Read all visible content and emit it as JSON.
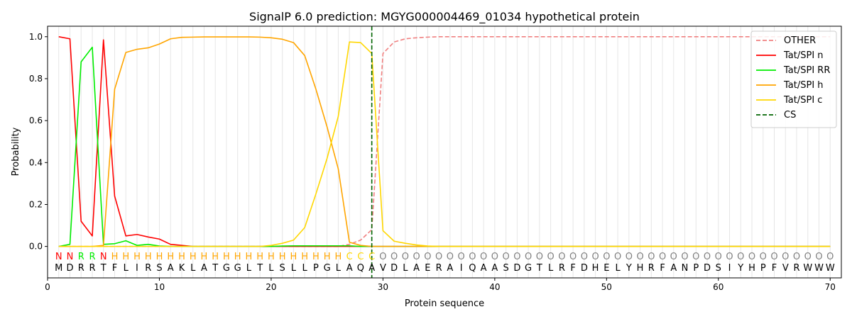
{
  "chart_data": {
    "type": "line",
    "title": "SignalP 6.0 prediction: MGYG000004469_01034 hypothetical protein",
    "xlabel": "Protein sequence",
    "ylabel": "Probability",
    "xlim": [
      0,
      71
    ],
    "ylim": [
      -0.15,
      1.05
    ],
    "xticks": [
      0,
      10,
      20,
      30,
      40,
      50,
      60,
      70
    ],
    "yticks": [
      0.0,
      0.2,
      0.4,
      0.6,
      0.8,
      1.0
    ],
    "ytick_labels": [
      "0.0",
      "0.2",
      "0.4",
      "0.6",
      "0.8",
      "1.0"
    ],
    "grid": "vertical lines at each residue",
    "legend_position": "top-right",
    "x": [
      1,
      2,
      3,
      4,
      5,
      6,
      7,
      8,
      9,
      10,
      11,
      12,
      13,
      14,
      15,
      16,
      17,
      18,
      19,
      20,
      21,
      22,
      23,
      24,
      25,
      26,
      27,
      28,
      29,
      30,
      31,
      32,
      33,
      34,
      35,
      36,
      37,
      38,
      39,
      40,
      41,
      42,
      43,
      44,
      45,
      46,
      47,
      48,
      49,
      50,
      51,
      52,
      53,
      54,
      55,
      56,
      57,
      58,
      59,
      60,
      61,
      62,
      63,
      64,
      65,
      66,
      67,
      68,
      69,
      70
    ],
    "sequence": [
      "M",
      "D",
      "R",
      "R",
      "T",
      "F",
      "L",
      "I",
      "R",
      "S",
      "A",
      "K",
      "L",
      "A",
      "T",
      "G",
      "G",
      "L",
      "T",
      "L",
      "S",
      "L",
      "L",
      "P",
      "G",
      "L",
      "A",
      "Q",
      "A",
      "V",
      "D",
      "L",
      "A",
      "E",
      "R",
      "A",
      "I",
      "Q",
      "A",
      "A",
      "S",
      "D",
      "G",
      "T",
      "L",
      "R",
      "F",
      "D",
      "H",
      "E",
      "L",
      "Y",
      "H",
      "R",
      "F",
      "A",
      "N",
      "P",
      "D",
      "S",
      "I",
      "Y",
      "H",
      "P",
      "F",
      "V",
      "R",
      "W",
      "W",
      "W"
    ],
    "region_labels": [
      "N",
      "N",
      "R",
      "R",
      "N",
      "H",
      "H",
      "H",
      "H",
      "H",
      "H",
      "H",
      "H",
      "H",
      "H",
      "H",
      "H",
      "H",
      "H",
      "H",
      "H",
      "H",
      "H",
      "H",
      "H",
      "H",
      "C",
      "C",
      "C",
      "O",
      "O",
      "O",
      "O",
      "O",
      "O",
      "O",
      "O",
      "O",
      "O",
      "O",
      "O",
      "O",
      "O",
      "O",
      "O",
      "O",
      "O",
      "O",
      "O",
      "O",
      "O",
      "O",
      "O",
      "O",
      "O",
      "O",
      "O",
      "O",
      "O",
      "O",
      "O",
      "O",
      "O",
      "O",
      "O",
      "O",
      "O",
      "O",
      "O",
      "O"
    ],
    "region_colors": {
      "N": "#ff0000",
      "R": "#00ee00",
      "H": "#ffa500",
      "C": "#ffd700",
      "O": "#808080"
    },
    "cleavage_site": 29,
    "series": [
      {
        "name": "OTHER",
        "color": "#f08080",
        "dash": "dashed",
        "values": [
          0.0,
          0.0,
          0.0,
          0.0,
          0.0,
          0.0,
          0.0,
          0.0,
          0.0,
          0.0,
          0.0,
          0.0,
          0.0,
          0.0,
          0.0,
          0.0,
          0.0,
          0.0,
          0.0,
          0.0,
          0.0,
          0.0,
          0.0,
          0.0,
          0.0,
          0.0,
          0.01,
          0.03,
          0.08,
          0.92,
          0.975,
          0.99,
          0.995,
          0.998,
          1.0,
          1.0,
          1.0,
          1.0,
          1.0,
          1.0,
          1.0,
          1.0,
          1.0,
          1.0,
          1.0,
          1.0,
          1.0,
          1.0,
          1.0,
          1.0,
          1.0,
          1.0,
          1.0,
          1.0,
          1.0,
          1.0,
          1.0,
          1.0,
          1.0,
          1.0,
          1.0,
          1.0,
          1.0,
          1.0,
          1.0,
          1.0,
          1.0,
          1.0,
          1.0,
          1.0
        ]
      },
      {
        "name": "Tat/SPI n",
        "color": "#ff0000",
        "dash": "solid",
        "values": [
          1.0,
          0.99,
          0.12,
          0.05,
          0.985,
          0.24,
          0.05,
          0.057,
          0.045,
          0.035,
          0.01,
          0.005,
          0.0,
          0.0,
          0.0,
          0.0,
          0.0,
          0.0,
          0.0,
          0.0,
          0.0,
          0.0,
          0.0,
          0.0,
          0.0,
          0.0,
          0.0,
          0.0,
          0.0,
          0.0,
          0.0,
          0.0,
          0.0,
          0.0,
          0.0,
          0.0,
          0.0,
          0.0,
          0.0,
          0.0,
          0.0,
          0.0,
          0.0,
          0.0,
          0.0,
          0.0,
          0.0,
          0.0,
          0.0,
          0.0,
          0.0,
          0.0,
          0.0,
          0.0,
          0.0,
          0.0,
          0.0,
          0.0,
          0.0,
          0.0,
          0.0,
          0.0,
          0.0,
          0.0,
          0.0,
          0.0,
          0.0,
          0.0,
          0.0,
          0.0
        ]
      },
      {
        "name": "Tat/SPI RR",
        "color": "#00ee00",
        "dash": "solid",
        "values": [
          0.0,
          0.01,
          0.88,
          0.95,
          0.01,
          0.013,
          0.027,
          0.005,
          0.01,
          0.002,
          0.0,
          0.0,
          0.0,
          0.0,
          0.0,
          0.0,
          0.0,
          0.0,
          0.0,
          0.0,
          0.002,
          0.003,
          0.003,
          0.003,
          0.003,
          0.003,
          0.003,
          0.0,
          0.0,
          0.0,
          0.0,
          0.0,
          0.0,
          0.0,
          0.0,
          0.0,
          0.0,
          0.0,
          0.0,
          0.0,
          0.0,
          0.0,
          0.0,
          0.0,
          0.0,
          0.0,
          0.0,
          0.0,
          0.0,
          0.0,
          0.0,
          0.0,
          0.0,
          0.0,
          0.0,
          0.0,
          0.0,
          0.0,
          0.0,
          0.0,
          0.0,
          0.0,
          0.0,
          0.0,
          0.0,
          0.0,
          0.0,
          0.0,
          0.0,
          0.0
        ]
      },
      {
        "name": "Tat/SPI h",
        "color": "#ffa500",
        "dash": "solid",
        "values": [
          0.0,
          0.0,
          0.0,
          0.0,
          0.005,
          0.75,
          0.925,
          0.94,
          0.947,
          0.965,
          0.99,
          0.997,
          0.998,
          0.999,
          0.999,
          0.999,
          0.999,
          0.999,
          0.998,
          0.995,
          0.988,
          0.972,
          0.91,
          0.75,
          0.57,
          0.37,
          0.02,
          0.005,
          0.0,
          0.0,
          0.0,
          0.0,
          0.0,
          0.0,
          0.0,
          0.0,
          0.0,
          0.0,
          0.0,
          0.0,
          0.0,
          0.0,
          0.0,
          0.0,
          0.0,
          0.0,
          0.0,
          0.0,
          0.0,
          0.0,
          0.0,
          0.0,
          0.0,
          0.0,
          0.0,
          0.0,
          0.0,
          0.0,
          0.0,
          0.0,
          0.0,
          0.0,
          0.0,
          0.0,
          0.0,
          0.0,
          0.0,
          0.0,
          0.0,
          0.0
        ]
      },
      {
        "name": "Tat/SPI c",
        "color": "#ffd700",
        "dash": "solid",
        "values": [
          0.0,
          0.0,
          0.0,
          0.0,
          0.0,
          0.0,
          0.0,
          0.0,
          0.0,
          0.0,
          0.0,
          0.0,
          0.0,
          0.0,
          0.0,
          0.0,
          0.0,
          0.0,
          0.0,
          0.005,
          0.015,
          0.03,
          0.09,
          0.25,
          0.42,
          0.62,
          0.975,
          0.972,
          0.92,
          0.075,
          0.025,
          0.015,
          0.007,
          0.002,
          0.0,
          0.0,
          0.0,
          0.0,
          0.0,
          0.0,
          0.0,
          0.0,
          0.0,
          0.0,
          0.0,
          0.0,
          0.0,
          0.0,
          0.0,
          0.0,
          0.0,
          0.0,
          0.0,
          0.0,
          0.0,
          0.0,
          0.0,
          0.0,
          0.0,
          0.0,
          0.0,
          0.0,
          0.0,
          0.0,
          0.0,
          0.0,
          0.0,
          0.0,
          0.0,
          0.0
        ]
      }
    ],
    "legend": [
      {
        "name": "OTHER",
        "color": "#f08080",
        "dash": "dashed"
      },
      {
        "name": "Tat/SPI n",
        "color": "#ff0000",
        "dash": "solid"
      },
      {
        "name": "Tat/SPI RR",
        "color": "#00ee00",
        "dash": "solid"
      },
      {
        "name": "Tat/SPI h",
        "color": "#ffa500",
        "dash": "solid"
      },
      {
        "name": "Tat/SPI c",
        "color": "#ffd700",
        "dash": "solid"
      },
      {
        "name": "CS",
        "color": "#006400",
        "dash": "dashed"
      }
    ]
  }
}
